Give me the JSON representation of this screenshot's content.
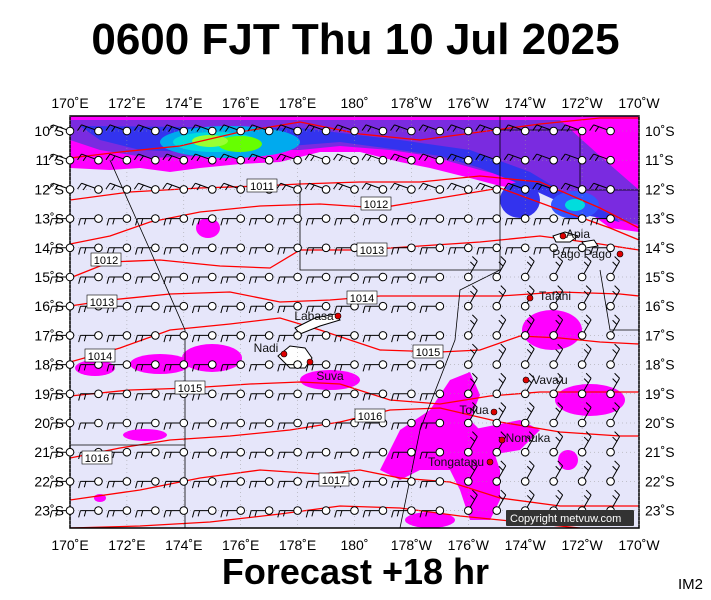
{
  "header": {
    "title": "0600 FJT Thu 10 Jul 2025"
  },
  "footer": {
    "forecast": "Forecast +18 hr",
    "code": "IM2"
  },
  "map": {
    "lon_labels": [
      "170˚E",
      "172˚E",
      "174˚E",
      "176˚E",
      "178˚E",
      "180˚",
      "178˚W",
      "176˚W",
      "174˚W",
      "172˚W",
      "170˚W"
    ],
    "lat_labels": [
      "10˚S",
      "11˚S",
      "12˚S",
      "13˚S",
      "14˚S",
      "15˚S",
      "16˚S",
      "17˚S",
      "18˚S",
      "19˚S",
      "20˚S",
      "21˚S",
      "22˚S",
      "23˚S"
    ],
    "isobar_labels": [
      "1011",
      "1012",
      "1012",
      "1013",
      "1013",
      "1014",
      "1014",
      "1015",
      "1015",
      "1016",
      "1016",
      "1017"
    ],
    "places": [
      "Apia",
      "Pago Pago",
      "Tafahi",
      "Labasa",
      "Nadi",
      "Suva",
      "Vava'u",
      "Tofua",
      "Nomuka",
      "Tongatapu"
    ],
    "copyright": "Copyright metvuw.com",
    "colors": {
      "background": "#e6e6fa",
      "rain_light": "#ff00ff",
      "rain_mid": "#3333ee",
      "rain_heavy": "#00dddd",
      "rain_peak": "#66ff00",
      "isobar": "#ff0000",
      "border": "#000000",
      "town": "#dd0000"
    }
  }
}
